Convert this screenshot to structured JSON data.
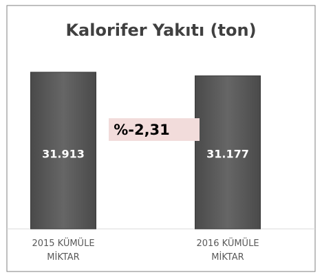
{
  "chart_data": {
    "type": "bar",
    "title": "Kalorifer Yakıtı (ton)",
    "categories": [
      "2015 KÜMÜLE MİKTAR",
      "2016 KÜMÜLE MİKTAR"
    ],
    "values": [
      31913,
      31177
    ],
    "value_labels": [
      "31.913",
      "31.177"
    ],
    "color": "#595959",
    "annotation": "%-2,31"
  }
}
